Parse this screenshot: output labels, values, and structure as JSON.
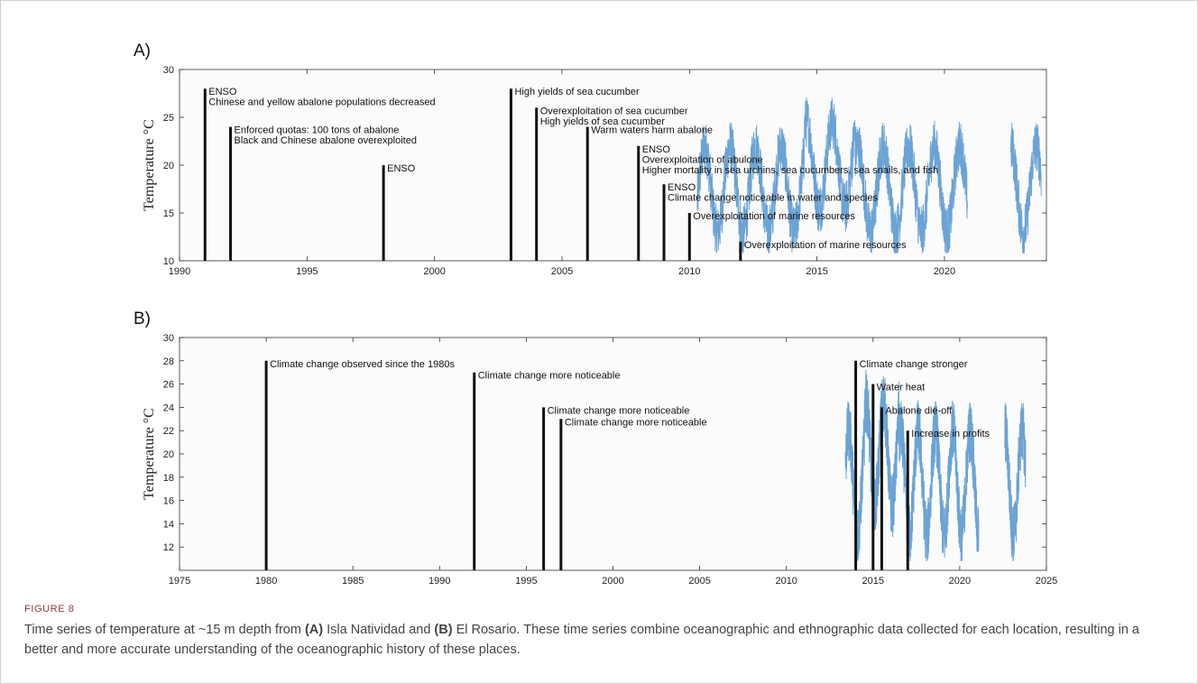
{
  "chart_data": [
    {
      "type": "line",
      "panel_label": "A)",
      "ylabel": "Temperature °C",
      "xlim": [
        1990,
        2024
      ],
      "ylim": [
        10,
        30
      ],
      "xticks": [
        1990,
        1995,
        2000,
        2005,
        2010,
        2015,
        2020
      ],
      "yticks": [
        10,
        15,
        20,
        25,
        30
      ],
      "series_color": "#3a86c8",
      "temperature_segments": [
        {
          "start": 2010.3,
          "end": 2020.9
        },
        {
          "start": 2022.6,
          "end": 2023.8
        }
      ],
      "events": [
        {
          "year": 1991,
          "height": 28,
          "lines": [
            "ENSO",
            "Chinese and yellow abalone populations decreased"
          ]
        },
        {
          "year": 1992,
          "height": 24,
          "lines": [
            "Enforced quotas: 100 tons of abalone",
            "Black and Chinese abalone overexploited"
          ]
        },
        {
          "year": 1998,
          "height": 20,
          "lines": [
            "ENSO"
          ]
        },
        {
          "year": 2003,
          "height": 28,
          "lines": [
            "High yields of sea cucumber"
          ]
        },
        {
          "year": 2004,
          "height": 26,
          "lines": [
            "Overexploitation of sea cucumber",
            "High yields of sea cucumber"
          ]
        },
        {
          "year": 2006,
          "height": 24,
          "lines": [
            "Warm waters harm abalone"
          ]
        },
        {
          "year": 2008,
          "height": 22,
          "lines": [
            "ENSO",
            "Overexploitation of abulone",
            "Higher mortality in sea urchins, sea cucumbers, sea snails, and fish"
          ]
        },
        {
          "year": 2009,
          "height": 18,
          "lines": [
            "ENSO",
            "Climate change noticeable in water and species"
          ]
        },
        {
          "year": 2010,
          "height": 15,
          "lines": [
            "Overexploitation of marine resources"
          ]
        },
        {
          "year": 2012,
          "height": 12,
          "lines": [
            "Overexploitation of marine resources"
          ]
        }
      ]
    },
    {
      "type": "line",
      "panel_label": "B)",
      "ylabel": "Temperature °C",
      "xlim": [
        1975,
        2025
      ],
      "ylim": [
        10,
        30
      ],
      "xticks": [
        1975,
        1980,
        1985,
        1990,
        1995,
        2000,
        2005,
        2010,
        2015,
        2020,
        2025
      ],
      "yticks": [
        12,
        14,
        16,
        18,
        20,
        22,
        24,
        26,
        28,
        30
      ],
      "series_color": "#3a86c8",
      "temperature_segments": [
        {
          "start": 2013.4,
          "end": 2021.1
        },
        {
          "start": 2022.6,
          "end": 2023.8
        }
      ],
      "events": [
        {
          "year": 1980,
          "height": 28,
          "lines": [
            "Climate change observed since the 1980s"
          ]
        },
        {
          "year": 1992,
          "height": 27,
          "lines": [
            "Climate change more noticeable"
          ]
        },
        {
          "year": 1996,
          "height": 24,
          "lines": [
            "Climate change more noticeable"
          ]
        },
        {
          "year": 1997,
          "height": 23,
          "lines": [
            "Climate change more noticeable"
          ]
        },
        {
          "year": 2014,
          "height": 28,
          "lines": [
            "Climate change stronger"
          ]
        },
        {
          "year": 2015,
          "height": 26,
          "lines": [
            "Water heat"
          ]
        },
        {
          "year": 2015.5,
          "height": 24,
          "lines": [
            "Abalone die-off"
          ]
        },
        {
          "year": 2017,
          "height": 22,
          "lines": [
            "Increase in profits"
          ]
        }
      ]
    }
  ],
  "caption": {
    "label": "FIGURE 8",
    "text_1": "Time series of temperature at ~15 m depth from ",
    "bold_a": "(A)",
    "text_2": " Isla Natividad and ",
    "bold_b": "(B)",
    "text_3": " El Rosario. These time series combine oceanographic and ethnographic data collected for each location, resulting in a better and more accurate understanding of the oceanographic history of these places."
  }
}
